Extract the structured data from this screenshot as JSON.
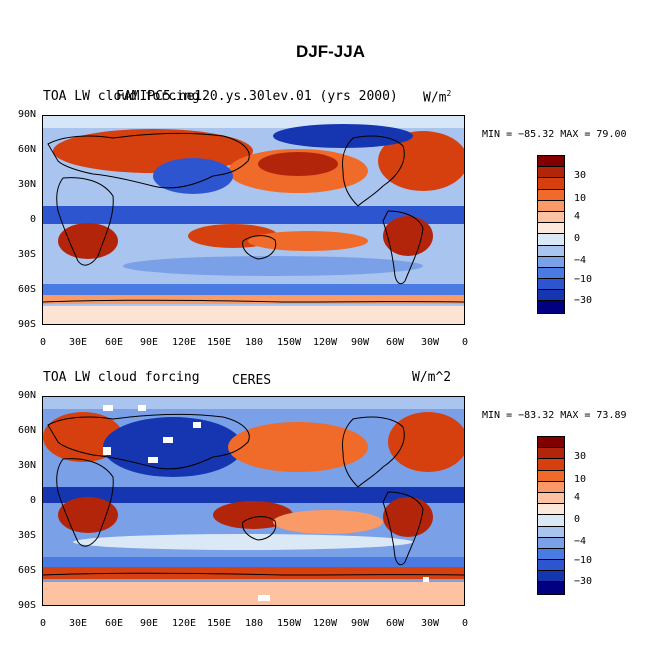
{
  "title": "DJF-JJA",
  "x_ticks": [
    "0",
    "30E",
    "60E",
    "90E",
    "120E",
    "150E",
    "180",
    "150W",
    "120W",
    "90W",
    "60W",
    "30W",
    "0"
  ],
  "y_ticks": [
    "90N",
    "60N",
    "30N",
    "0",
    "30S",
    "60S",
    "90S"
  ],
  "colorbar": {
    "colors": [
      "#800000",
      "#b3250a",
      "#d6400f",
      "#f06a2a",
      "#fa9a66",
      "#fdc2a2",
      "#fde9dc",
      "#dbe9f7",
      "#a9c4ee",
      "#7aa0e8",
      "#4a7be2",
      "#2e55d0",
      "#1536b0",
      "#000080"
    ],
    "labels": [
      "30",
      "10",
      "4",
      "0",
      "−4",
      "−10",
      "−30"
    ]
  },
  "panels": [
    {
      "left_title": "TOA LW cloud forcing",
      "center_title": "FAMIPC5.ne120.ys.30lev.01 (yrs 2000)",
      "units": "W/m",
      "units_sup": "2",
      "min_label": "MIN = ",
      "min": "−85.32",
      "max_label": "MAX = ",
      "max": "79.00"
    },
    {
      "left_title": "TOA LW cloud forcing",
      "center_title": "CERES",
      "units": "W/m^2",
      "units_sup": "",
      "min_label": "MIN = ",
      "min": "−83.32",
      "max_label": "MAX = ",
      "max": "73.89"
    }
  ]
}
